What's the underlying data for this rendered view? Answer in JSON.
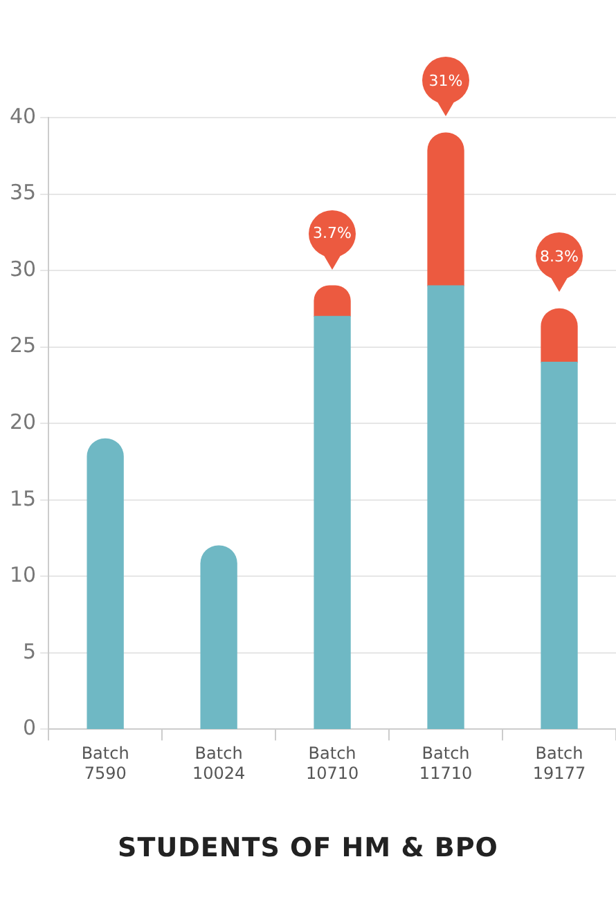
{
  "chart_data": {
    "type": "bar",
    "title": "STUDENTS OF HM & BPO",
    "categories": [
      "Batch 7590",
      "Batch 10024",
      "Batch 10710",
      "Batch 11710",
      "Batch 19177"
    ],
    "stacked": true,
    "series": [
      {
        "color": "#6fb8c4",
        "values": [
          19,
          12,
          27,
          29,
          24
        ]
      },
      {
        "color": "#ec5a40",
        "values": [
          null,
          null,
          2,
          10,
          3.5
        ]
      }
    ],
    "ylim": [
      0,
      40
    ],
    "yticks": [
      0,
      5,
      10,
      15,
      20,
      25,
      30,
      35,
      40
    ],
    "grid": "y",
    "legend": false,
    "annotations": [
      {
        "text": "3.7%",
        "x": "Batch 10710",
        "y": 29
      },
      {
        "text": "31%",
        "x": "Batch 11710",
        "y": 39
      },
      {
        "text": "8.3%",
        "x": "Batch 19177",
        "y": 27.5
      }
    ]
  }
}
